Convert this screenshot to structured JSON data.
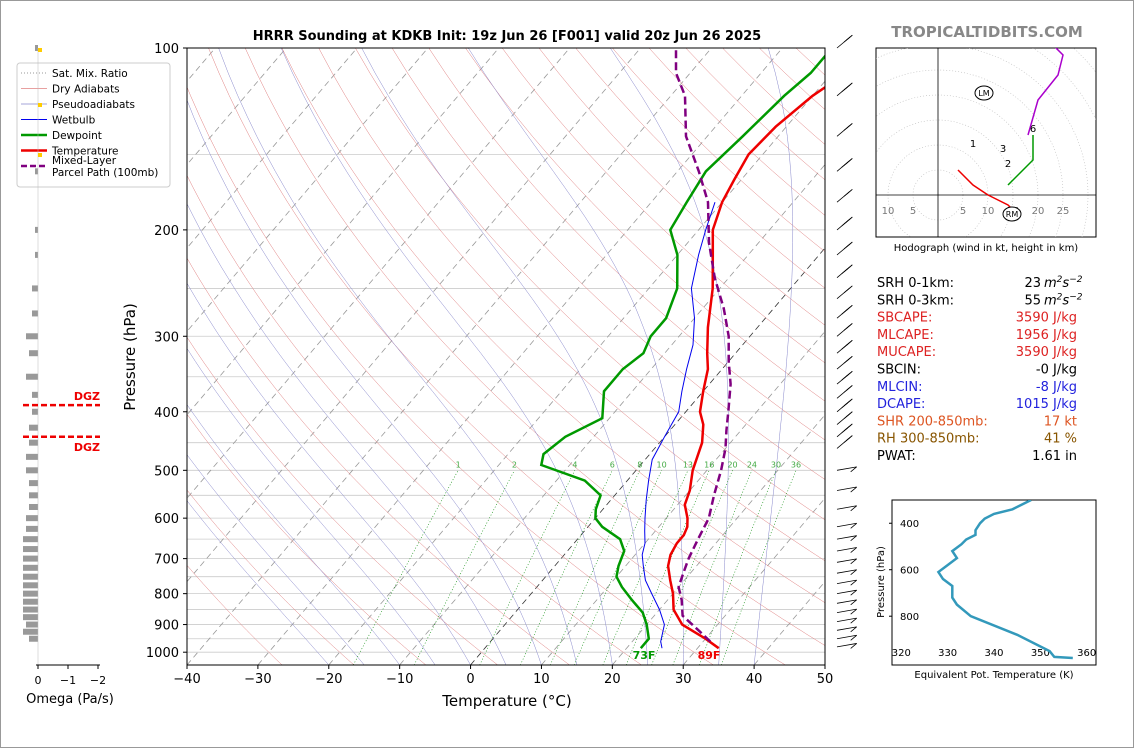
{
  "chart_data": [
    {
      "type": "line",
      "subtype": "skew-t",
      "title": "HRRR Sounding at KDKB Init: 19z Jun 26 [F001] valid 20z Jun 26 2025",
      "xlabel": "Temperature (°C)",
      "ylabel": "Pressure (hPa)",
      "xlim": [
        -40,
        50
      ],
      "ylim": [
        1050,
        100
      ],
      "y_scale": "log",
      "x_ticks": [
        "−40",
        "−30",
        "−20",
        "−10",
        "0",
        "10",
        "20",
        "30",
        "40",
        "50"
      ],
      "y_ticks": [
        "100",
        "200",
        "300",
        "400",
        "500",
        "600",
        "700",
        "800",
        "900",
        "1000"
      ],
      "legend": [
        {
          "label": "Sat. Mix. Ratio",
          "color": "#777777",
          "style": "dotted"
        },
        {
          "label": "Dry Adiabats",
          "color": "#e08080",
          "style": "solid-thin"
        },
        {
          "label": "Pseudoadiabats",
          "color": "#8888cc",
          "style": "solid-thin"
        },
        {
          "label": "Wetbulb",
          "color": "#0000ee",
          "style": "solid"
        },
        {
          "label": "Dewpoint",
          "color": "#009900",
          "style": "thick"
        },
        {
          "label": "Temperature",
          "color": "#ee0000",
          "style": "thick"
        },
        {
          "label": "Mixed-Layer\nParcel Path (100mb)",
          "color": "#800080",
          "style": "dashed"
        }
      ],
      "mixing_ratio_labels": [
        "1",
        "2",
        "4",
        "6",
        "8",
        "10",
        "13",
        "16",
        "20",
        "24",
        "30",
        "36"
      ],
      "series": [
        {
          "name": "Temperature",
          "color": "#ee0000",
          "points": [
            [
              33,
              985
            ],
            [
              30,
              950
            ],
            [
              25,
              900
            ],
            [
              22,
              850
            ],
            [
              20,
              800
            ],
            [
              18,
              760
            ],
            [
              16,
              720
            ],
            [
              15,
              690
            ],
            [
              14.5,
              660
            ],
            [
              14.5,
              640
            ],
            [
              14,
              620
            ],
            [
              13,
              600
            ],
            [
              11,
              570
            ],
            [
              10,
              540
            ],
            [
              8,
              500
            ],
            [
              6,
              450
            ],
            [
              4,
              420
            ],
            [
              2,
              400
            ],
            [
              0,
              370
            ],
            [
              -2,
              340
            ],
            [
              -4,
              320
            ],
            [
              -7,
              290
            ],
            [
              -11,
              250
            ],
            [
              -15,
              220
            ],
            [
              -18,
              200
            ],
            [
              -20,
              180
            ],
            [
              -21,
              165
            ],
            [
              -22,
              150
            ],
            [
              -21.5,
              135
            ],
            [
              -20,
              120
            ],
            [
              -18,
              110
            ],
            [
              -16,
              100
            ]
          ]
        },
        {
          "name": "Dewpoint",
          "color": "#009900",
          "points": [
            [
              22,
              985
            ],
            [
              22,
              950
            ],
            [
              20,
              900
            ],
            [
              18,
              860
            ],
            [
              15,
              820
            ],
            [
              12,
              780
            ],
            [
              10,
              750
            ],
            [
              9,
              720
            ],
            [
              8,
              680
            ],
            [
              6,
              650
            ],
            [
              2,
              620
            ],
            [
              0,
              600
            ],
            [
              -1,
              580
            ],
            [
              -2,
              550
            ],
            [
              -6,
              520
            ],
            [
              -14,
              490
            ],
            [
              -15,
              470
            ],
            [
              -14,
              440
            ],
            [
              -11,
              410
            ],
            [
              -14,
              370
            ],
            [
              -14,
              340
            ],
            [
              -13,
              320
            ],
            [
              -14,
              300
            ],
            [
              -14,
              280
            ],
            [
              -16,
              250
            ],
            [
              -20,
              220
            ],
            [
              -24,
              200
            ],
            [
              -25,
              180
            ],
            [
              -26,
              160
            ],
            [
              -25,
              140
            ],
            [
              -24,
              120
            ],
            [
              -23,
              110
            ],
            [
              -23,
              100
            ]
          ]
        },
        {
          "name": "Wetbulb",
          "color": "#0000ee",
          "points": [
            [
              25,
              985
            ],
            [
              24,
              960
            ],
            [
              22.5,
              900
            ],
            [
              20,
              850
            ],
            [
              17,
              800
            ],
            [
              14.5,
              760
            ],
            [
              12.5,
              720
            ],
            [
              11,
              690
            ],
            [
              10,
              660
            ],
            [
              8.5,
              630
            ],
            [
              7,
              600
            ],
            [
              5,
              560
            ],
            [
              3,
              520
            ],
            [
              1,
              480
            ],
            [
              0,
              440
            ],
            [
              -1,
              400
            ],
            [
              -3,
              370
            ],
            [
              -5,
              340
            ],
            [
              -7,
              310
            ],
            [
              -10,
              280
            ],
            [
              -14,
              250
            ],
            [
              -17,
              220
            ],
            [
              -19,
              200
            ],
            [
              -21,
              180
            ]
          ]
        },
        {
          "name": "Mixed-Layer Parcel Path",
          "color": "#800080",
          "points": [
            [
              31,
              960
            ],
            [
              28,
              920
            ],
            [
              24,
              870
            ],
            [
              22,
              820
            ],
            [
              20,
              780
            ],
            [
              19,
              740
            ],
            [
              18,
              700
            ],
            [
              17,
              650
            ],
            [
              16,
              600
            ],
            [
              14,
              550
            ],
            [
              12,
              500
            ],
            [
              10,
              460
            ],
            [
              8,
              430
            ],
            [
              6,
              400
            ],
            [
              3,
              360
            ],
            [
              0,
              330
            ],
            [
              -3,
              300
            ],
            [
              -7,
              270
            ],
            [
              -12,
              240
            ],
            [
              -17,
              210
            ],
            [
              -22,
              180
            ],
            [
              -27,
              160
            ],
            [
              -33,
              140
            ],
            [
              -38,
              120
            ],
            [
              -42,
              110
            ],
            [
              -45,
              100
            ]
          ]
        }
      ],
      "surface_labels": {
        "dewpoint": "73F",
        "temperature": "89F"
      },
      "dgz": {
        "label": "DGZ",
        "pressures": [
          390,
          440
        ]
      }
    },
    {
      "type": "line",
      "subtype": "hodograph",
      "title": "Hodograph (wind in kt, height in km)",
      "x_tick_labels": [
        "10",
        "5",
        "5",
        "10",
        "15",
        "20",
        "25"
      ],
      "markers": {
        "LM": "LM",
        "RM": "RM"
      },
      "height_labels": [
        "1",
        "2",
        "3",
        "6",
        "9"
      ],
      "series": [
        {
          "name": "0-1km",
          "color": "#ee0000",
          "points": [
            [
              4,
              -5
            ],
            [
              7,
              -2
            ],
            [
              10,
              0
            ]
          ]
        },
        {
          "name": "1-3km",
          "color": "#ee0000",
          "points": [
            [
              10,
              0
            ],
            [
              14,
              2
            ],
            [
              15,
              3
            ]
          ]
        },
        {
          "name": "3-6km",
          "color": "#009900",
          "points": [
            [
              14,
              -2
            ],
            [
              17,
              -5
            ],
            [
              19,
              -7
            ],
            [
              19,
              -12
            ]
          ]
        },
        {
          "name": "6-9km",
          "color": "#aa00cc",
          "points": [
            [
              18,
              -12
            ],
            [
              20,
              -19
            ],
            [
              24,
              -24
            ],
            [
              25,
              -28
            ],
            [
              22,
              -31
            ],
            [
              18,
              -33
            ],
            [
              17,
              -35
            ],
            [
              14,
              -38
            ]
          ]
        },
        {
          "name": "9+km",
          "color": "#0000ee",
          "points": [
            [
              14,
              -38
            ],
            [
              12,
              -39
            ],
            [
              11,
              -38
            ],
            [
              11,
              -35
            ],
            [
              10,
              -33
            ]
          ]
        }
      ]
    },
    {
      "type": "line",
      "subtype": "theta-e-profile",
      "xlabel": "Equivalent Pot. Temperature (K)",
      "ylabel": "Pressure (hPa)",
      "xlim": [
        318,
        362
      ],
      "ylim": [
        1010,
        300
      ],
      "x_ticks": [
        "320",
        "330",
        "340",
        "350",
        "360"
      ],
      "y_ticks": [
        "400",
        "600",
        "800"
      ],
      "series": [
        {
          "name": "Theta-E",
          "color": "#3399bb",
          "points": [
            [
              357,
              980
            ],
            [
              353,
              975
            ],
            [
              352,
              950
            ],
            [
              345,
              880
            ],
            [
              335,
              800
            ],
            [
              332,
              750
            ],
            [
              331,
              720
            ],
            [
              331,
              670
            ],
            [
              329,
              640
            ],
            [
              328,
              610
            ],
            [
              330,
              580
            ],
            [
              332,
              550
            ],
            [
              331,
              520
            ],
            [
              333,
              490
            ],
            [
              334,
              470
            ],
            [
              336,
              450
            ],
            [
              336,
              430
            ],
            [
              337,
              400
            ],
            [
              338,
              380
            ],
            [
              340,
              360
            ],
            [
              344,
              340
            ],
            [
              346,
              320
            ],
            [
              348,
              300
            ]
          ]
        }
      ]
    },
    {
      "type": "bar",
      "subtype": "omega-profile",
      "xlabel": "Omega (Pa/s)",
      "x_ticks": [
        "0",
        "−1",
        "−2"
      ],
      "values": [
        {
          "p": 100,
          "v": 0.05
        },
        {
          "p": 160,
          "v": 0.05
        },
        {
          "p": 200,
          "v": 0.05
        },
        {
          "p": 220,
          "v": 0.05
        },
        {
          "p": 250,
          "v": 0.1
        },
        {
          "p": 275,
          "v": 0.1
        },
        {
          "p": 300,
          "v": 0.2
        },
        {
          "p": 320,
          "v": 0.15
        },
        {
          "p": 350,
          "v": 0.2
        },
        {
          "p": 375,
          "v": 0.1
        },
        {
          "p": 400,
          "v": 0.1
        },
        {
          "p": 425,
          "v": 0.15
        },
        {
          "p": 450,
          "v": 0.15
        },
        {
          "p": 475,
          "v": 0.2
        },
        {
          "p": 500,
          "v": 0.2
        },
        {
          "p": 525,
          "v": 0.15
        },
        {
          "p": 550,
          "v": 0.15
        },
        {
          "p": 575,
          "v": 0.15
        },
        {
          "p": 600,
          "v": 0.2
        },
        {
          "p": 625,
          "v": 0.2
        },
        {
          "p": 650,
          "v": 0.25
        },
        {
          "p": 675,
          "v": 0.25
        },
        {
          "p": 700,
          "v": 0.25
        },
        {
          "p": 725,
          "v": 0.25
        },
        {
          "p": 750,
          "v": 0.25
        },
        {
          "p": 775,
          "v": 0.25
        },
        {
          "p": 800,
          "v": 0.25
        },
        {
          "p": 825,
          "v": 0.25
        },
        {
          "p": 850,
          "v": 0.25
        },
        {
          "p": 875,
          "v": 0.25
        },
        {
          "p": 900,
          "v": 0.2
        },
        {
          "p": 925,
          "v": 0.25
        },
        {
          "p": 950,
          "v": 0.15
        }
      ]
    }
  ],
  "branding": {
    "site": "TROPICALTIDBITS.COM"
  },
  "stats": [
    {
      "label": "SRH 0-1km:",
      "value": "23",
      "unit": "m2s-2",
      "color": "#000000"
    },
    {
      "label": "SRH 0-3km:",
      "value": "55",
      "unit": "m2s-2",
      "color": "#000000"
    },
    {
      "label": "SBCAPE:",
      "value": "3590 J/kg",
      "color": "#dd2222"
    },
    {
      "label": "MLCAPE:",
      "value": "1956 J/kg",
      "color": "#dd2222"
    },
    {
      "label": "MUCAPE:",
      "value": "3590 J/kg",
      "color": "#dd2222"
    },
    {
      "label": "SBCIN:",
      "value": "-0 J/kg",
      "color": "#000000"
    },
    {
      "label": "MLCIN:",
      "value": "-8 J/kg",
      "color": "#2222dd"
    },
    {
      "label": "DCAPE:",
      "value": "1015 J/kg",
      "color": "#2222dd"
    },
    {
      "label": "SHR 200-850mb:",
      "value": "17 kt",
      "color": "#dd5522"
    },
    {
      "label": "RH 300-850mb:",
      "value": "41 %",
      "color": "#885500"
    },
    {
      "label": "PWAT:",
      "value": "1.61 in",
      "color": "#000000"
    }
  ]
}
